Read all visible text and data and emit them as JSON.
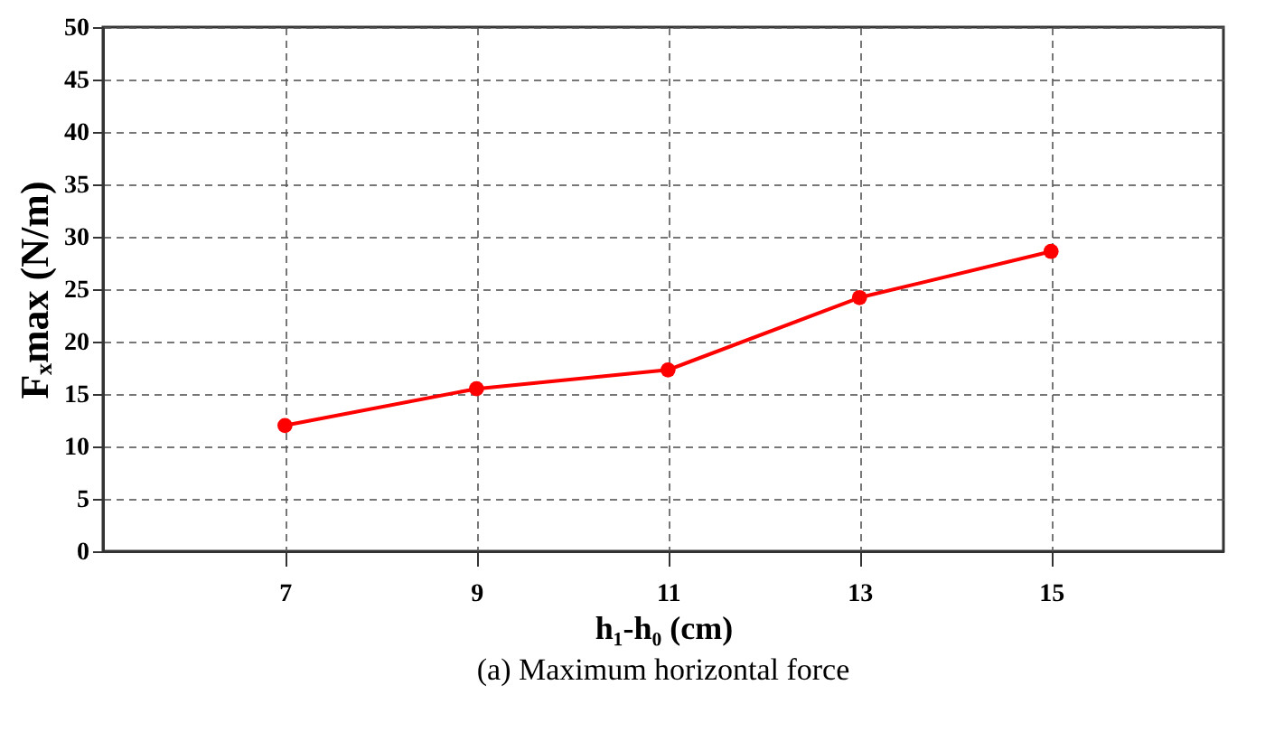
{
  "chart_data": {
    "type": "line",
    "title": "(a) Maximum horizontal force",
    "xlabel": "h₁-h₀ (cm)",
    "ylabel": "Fₓmax (N/m)",
    "x": [
      7,
      9,
      11,
      13,
      15
    ],
    "series": [
      {
        "color": "#ff0000",
        "values": [
          12,
          15.5,
          17.3,
          24.2,
          28.6
        ]
      }
    ],
    "xlim": [
      5.1,
      16.8
    ],
    "xticks": [
      7,
      9,
      11,
      13,
      15
    ],
    "ylim": [
      0,
      50
    ],
    "yticks": [
      0,
      5,
      10,
      15,
      20,
      25,
      30,
      35,
      40,
      45,
      50
    ],
    "grid": true,
    "marker": "circle",
    "line_style": "solid",
    "legend": false
  }
}
